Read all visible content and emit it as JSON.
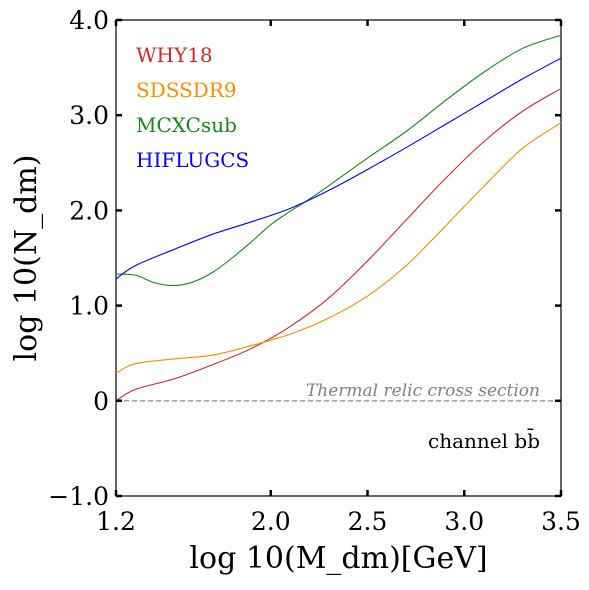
{
  "chart_data": {
    "type": "line",
    "xlabel": "log 10(M_dm)[GeV]",
    "ylabel": "log 10(N_dm)",
    "xlim": [
      1.2,
      3.5
    ],
    "ylim": [
      -1.0,
      4.0
    ],
    "xticks": [
      1.2,
      2.0,
      2.5,
      3.0,
      3.5
    ],
    "xtick_labels": [
      "1.2",
      "2.0",
      "2.5",
      "3.0",
      "3.5"
    ],
    "yticks": [
      -1.0,
      0,
      1.0,
      2.0,
      3.0,
      4.0
    ],
    "ytick_labels": [
      "−1.0",
      "0",
      "1.0",
      "2.0",
      "3.0",
      "4.0"
    ],
    "legend_position": "top-left",
    "series": [
      {
        "name": "WHY18",
        "color": "#d62728",
        "x": [
          1.2,
          1.3,
          1.5,
          1.7,
          1.9,
          2.1,
          2.3,
          2.5,
          2.7,
          2.9,
          3.1,
          3.3,
          3.5
        ],
        "y": [
          0.0,
          0.12,
          0.23,
          0.38,
          0.55,
          0.78,
          1.08,
          1.47,
          1.9,
          2.33,
          2.72,
          3.04,
          3.28
        ]
      },
      {
        "name": "SDSSDR9",
        "color": "#ff8c00",
        "x": [
          1.2,
          1.3,
          1.5,
          1.7,
          1.9,
          2.1,
          2.3,
          2.5,
          2.7,
          2.9,
          3.1,
          3.3,
          3.5
        ],
        "y": [
          0.29,
          0.39,
          0.44,
          0.48,
          0.58,
          0.7,
          0.87,
          1.1,
          1.42,
          1.83,
          2.25,
          2.65,
          2.92
        ]
      },
      {
        "name": "MCXCsub",
        "color": "#138a13",
        "x": [
          1.2,
          1.3,
          1.4,
          1.5,
          1.6,
          1.7,
          1.8,
          1.9,
          2.0,
          2.1,
          2.2,
          2.3,
          2.5,
          2.7,
          2.9,
          3.1,
          3.3,
          3.5
        ],
        "y": [
          1.33,
          1.32,
          1.24,
          1.21,
          1.25,
          1.35,
          1.5,
          1.67,
          1.85,
          1.99,
          2.12,
          2.26,
          2.55,
          2.83,
          3.15,
          3.45,
          3.7,
          3.84
        ]
      },
      {
        "name": "HIFLUGCS",
        "color": "#0000ff",
        "x": [
          1.2,
          1.3,
          1.5,
          1.7,
          1.9,
          2.1,
          2.3,
          2.5,
          2.7,
          2.9,
          3.1,
          3.3,
          3.5
        ],
        "y": [
          1.28,
          1.42,
          1.59,
          1.75,
          1.88,
          2.02,
          2.21,
          2.43,
          2.66,
          2.9,
          3.14,
          3.38,
          3.6
        ]
      }
    ],
    "reference_line": {
      "y": 0,
      "label": "Thermal relic cross section",
      "color": "#808080",
      "style": "dashed"
    },
    "annotation": "channel bb̄"
  }
}
